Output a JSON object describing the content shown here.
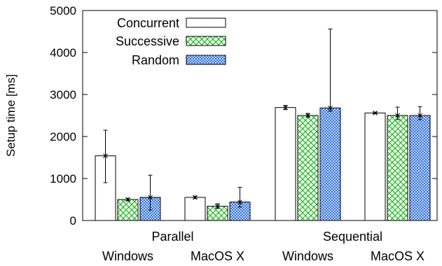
{
  "chart_data": {
    "type": "bar",
    "ylabel": "Setup time [ms]",
    "ylim": [
      0,
      5000
    ],
    "yticks": [
      0,
      1000,
      2000,
      3000,
      4000,
      5000
    ],
    "grid": false,
    "legend_position": "top-left",
    "group_labels": [
      "Parallel",
      "Sequential"
    ],
    "categories": [
      "Windows",
      "MacOS X",
      "Windows",
      "MacOS X"
    ],
    "series": [
      {
        "name": "Concurrent",
        "pattern": "none",
        "color": "#000000",
        "values": [
          1540,
          550,
          2690,
          2560
        ],
        "err_low": [
          900,
          520,
          2640,
          2540
        ],
        "err_high": [
          2150,
          580,
          2740,
          2580
        ]
      },
      {
        "name": "Successive",
        "pattern": "crosshatch",
        "color": "#22bb22",
        "values": [
          500,
          340,
          2500,
          2500
        ],
        "err_low": [
          470,
          290,
          2460,
          2400
        ],
        "err_high": [
          530,
          400,
          2550,
          2700
        ]
      },
      {
        "name": "Random",
        "pattern": "crosshatch",
        "color": "#2266dd",
        "values": [
          550,
          440,
          2680,
          2500
        ],
        "err_low": [
          250,
          320,
          2600,
          2400
        ],
        "err_high": [
          1080,
          790,
          4560,
          2710
        ]
      }
    ]
  }
}
